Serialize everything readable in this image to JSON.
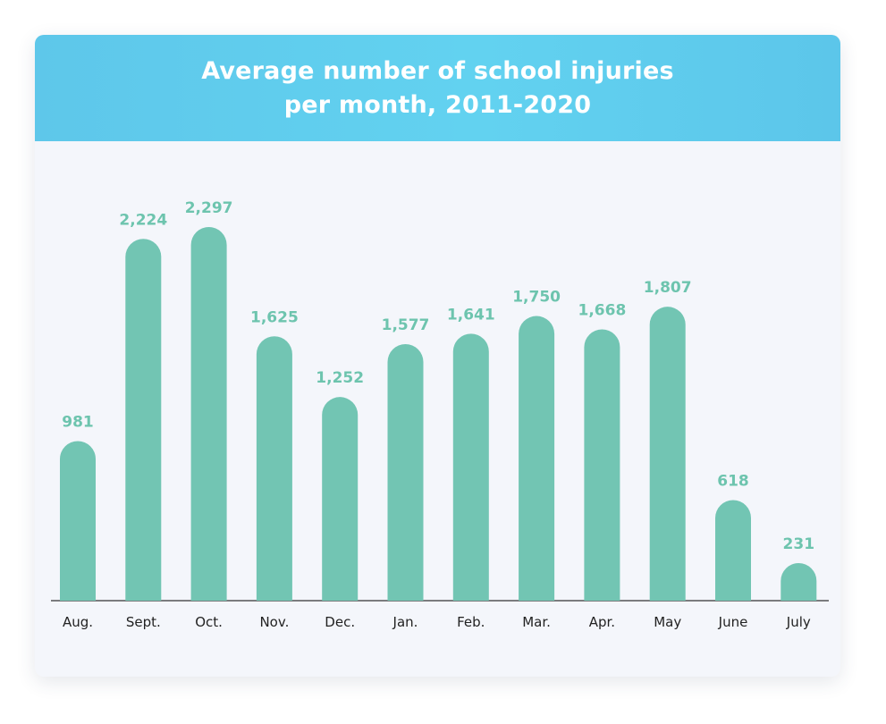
{
  "chart_data": {
    "type": "bar",
    "title": "Average number of school injuries\nper month, 2011-2020",
    "categories": [
      "Aug.",
      "Sept.",
      "Oct.",
      "Nov.",
      "Dec.",
      "Jan.",
      "Feb.",
      "Mar.",
      "Apr.",
      "May",
      "June",
      "July"
    ],
    "values": [
      981,
      2224,
      2297,
      1625,
      1252,
      1577,
      1641,
      1750,
      1668,
      1807,
      618,
      231
    ],
    "value_labels": [
      "981",
      "2,224",
      "2,297",
      "1,625",
      "1,252",
      "1,577",
      "1,641",
      "1,750",
      "1,668",
      "1,807",
      "618",
      "231"
    ],
    "xlabel": "",
    "ylabel": "",
    "ylim": [
      0,
      2297
    ],
    "grid": false,
    "legend": "none"
  },
  "colors": {
    "bar": "#72c5b3",
    "value_label": "#6dc4ae",
    "header": "#5fcbed",
    "baseline": "#333333"
  }
}
